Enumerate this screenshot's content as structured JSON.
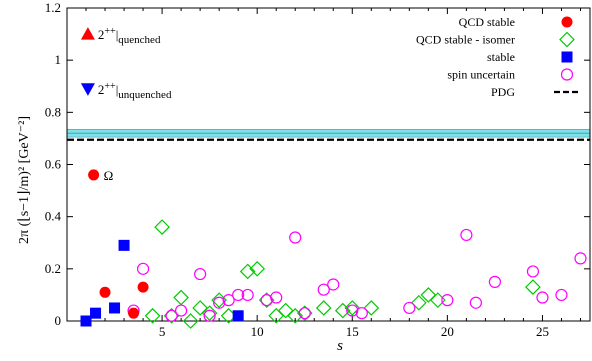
{
  "chart_data": {
    "type": "scatter",
    "xlabel": "s",
    "ylabel": "2π (⌊s−1⌋/m)² [GeV⁻²]",
    "xlim": [
      0,
      27.5
    ],
    "ylim": [
      0,
      1.2
    ],
    "x_ticks": [
      5,
      10,
      15,
      20,
      25
    ],
    "y_ticks": [
      0,
      0.2,
      0.4,
      0.6,
      0.8,
      1.0,
      1.2
    ],
    "x_tick_labels": [
      "5",
      "10",
      "15",
      "20",
      "25"
    ],
    "y_tick_labels": [
      "0",
      "0.2",
      "0.4",
      "0.6",
      "0.8",
      "1",
      "1.2"
    ],
    "grid": false,
    "legend_position": "top-right",
    "legend": [
      {
        "label": "QCD stable",
        "marker": "circle-filled",
        "color": "#ff0000"
      },
      {
        "label": "QCD stable - isomer",
        "marker": "diamond-open",
        "color": "#00cc00"
      },
      {
        "label": "stable",
        "marker": "square-filled",
        "color": "#0000ff"
      },
      {
        "label": "spin uncertain",
        "marker": "circle-open",
        "color": "#ff00ff"
      },
      {
        "label": "PDG",
        "marker": "dashed-line",
        "color": "#000000"
      }
    ],
    "annotations": [
      {
        "marker": "triangle-up",
        "color": "#ff0000",
        "text": "2++|quenched",
        "x": 1.1,
        "y": 1.1
      },
      {
        "marker": "triangle-down",
        "color": "#0000ff",
        "text": "2++|unquenched",
        "x": 1.1,
        "y": 0.89
      }
    ],
    "pdg_band": {
      "low": 0.705,
      "high": 0.735,
      "center": 0.72,
      "line": 0.695,
      "color": "#80e0e8"
    },
    "series": [
      {
        "name": "QCD stable",
        "marker": "circle-filled",
        "color": "#ff0000",
        "points": [
          [
            1.4,
            0.56
          ],
          [
            2.0,
            0.11
          ],
          [
            3.5,
            0.03
          ],
          [
            4.0,
            0.13
          ]
        ],
        "labels": [
          "Ω",
          "",
          "",
          ""
        ]
      },
      {
        "name": "QCD stable - isomer",
        "marker": "diamond-open",
        "color": "#00cc00",
        "points": [
          [
            4.5,
            0.02
          ],
          [
            5.0,
            0.36
          ],
          [
            5.5,
            0.02
          ],
          [
            6.0,
            0.09
          ],
          [
            6.5,
            0.0
          ],
          [
            7.0,
            0.05
          ],
          [
            7.5,
            0.03
          ],
          [
            8.0,
            0.08
          ],
          [
            8.5,
            0.02
          ],
          [
            9.5,
            0.19
          ],
          [
            10.0,
            0.2
          ],
          [
            10.5,
            0.08
          ],
          [
            11.0,
            0.02
          ],
          [
            11.5,
            0.04
          ],
          [
            12.0,
            0.02
          ],
          [
            12.5,
            0.03
          ],
          [
            13.5,
            0.05
          ],
          [
            14.5,
            0.04
          ],
          [
            15.0,
            0.05
          ],
          [
            16.0,
            0.05
          ],
          [
            18.5,
            0.07
          ],
          [
            19.0,
            0.1
          ],
          [
            19.5,
            0.08
          ],
          [
            24.5,
            0.13
          ]
        ]
      },
      {
        "name": "stable",
        "marker": "square-filled",
        "color": "#0000ff",
        "points": [
          [
            1.0,
            0.0
          ],
          [
            1.5,
            0.03
          ],
          [
            2.5,
            0.05
          ],
          [
            3.0,
            0.29
          ],
          [
            9.0,
            0.02
          ]
        ]
      },
      {
        "name": "spin uncertain",
        "marker": "circle-open",
        "color": "#ff00ff",
        "points": [
          [
            3.5,
            0.04
          ],
          [
            4.0,
            0.2
          ],
          [
            5.5,
            0.02
          ],
          [
            6.0,
            0.04
          ],
          [
            7.0,
            0.18
          ],
          [
            7.5,
            0.02
          ],
          [
            8.0,
            0.07
          ],
          [
            8.5,
            0.08
          ],
          [
            9.0,
            0.1
          ],
          [
            9.5,
            0.1
          ],
          [
            10.5,
            0.08
          ],
          [
            11.0,
            0.09
          ],
          [
            12.0,
            0.32
          ],
          [
            12.5,
            0.03
          ],
          [
            13.5,
            0.12
          ],
          [
            14.0,
            0.14
          ],
          [
            15.0,
            0.04
          ],
          [
            15.5,
            0.03
          ],
          [
            18.0,
            0.05
          ],
          [
            20.0,
            0.08
          ],
          [
            21.0,
            0.33
          ],
          [
            21.5,
            0.07
          ],
          [
            22.5,
            0.15
          ],
          [
            24.5,
            0.19
          ],
          [
            25.0,
            0.09
          ],
          [
            26.0,
            0.1
          ],
          [
            27.0,
            0.24
          ]
        ]
      }
    ]
  }
}
